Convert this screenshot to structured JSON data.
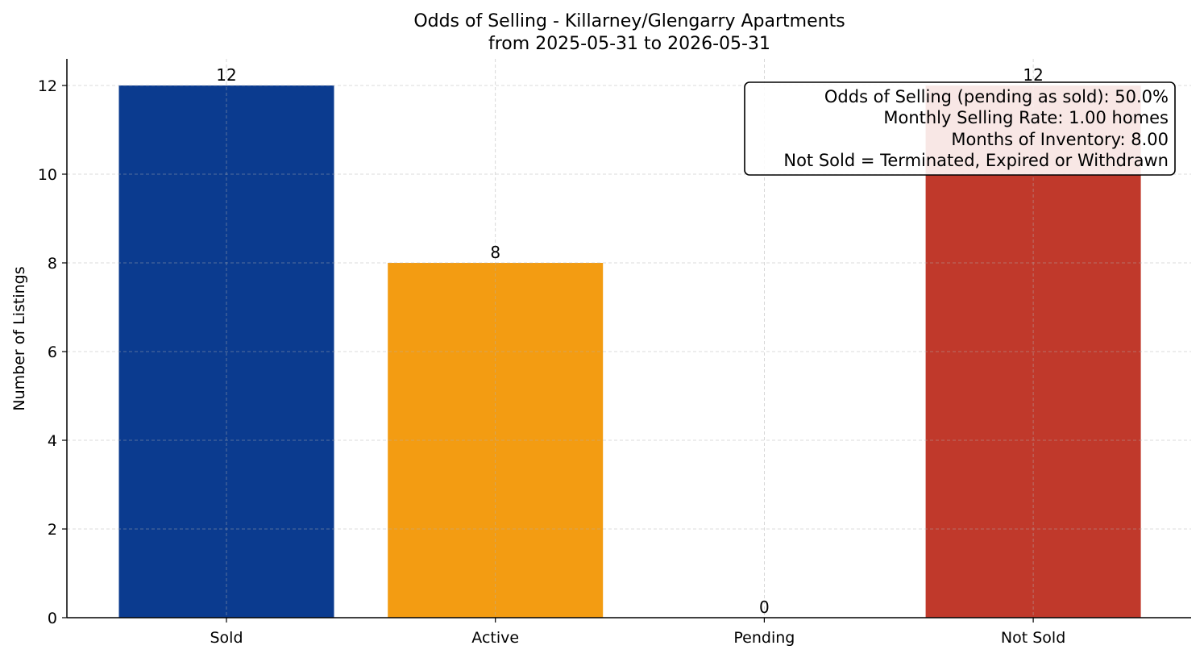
{
  "chart_data": {
    "type": "bar",
    "title": "Odds of Selling - Killarney/Glengarry Apartments",
    "subtitle": "from 2025-05-31 to 2026-05-31",
    "xlabel": "",
    "ylabel": "Number of Listings",
    "categories": [
      "Sold",
      "Active",
      "Pending",
      "Not Sold"
    ],
    "values": [
      12,
      8,
      0,
      12
    ],
    "value_labels": [
      "12",
      "8",
      "0",
      "12"
    ],
    "colors": [
      "#0b3b8f",
      "#f39c12",
      "#7f8c8d",
      "#c0392b"
    ],
    "ylim": [
      0,
      12.6
    ],
    "yticks": [
      0,
      2,
      4,
      6,
      8,
      10,
      12
    ],
    "grid": true,
    "info_box": {
      "placement": "top-right",
      "lines": [
        "Odds of Selling (pending as sold): 50.0%",
        "Monthly Selling Rate: 1.00 homes",
        "Months of Inventory: 8.00",
        "Not Sold = Terminated, Expired or Withdrawn"
      ]
    }
  }
}
